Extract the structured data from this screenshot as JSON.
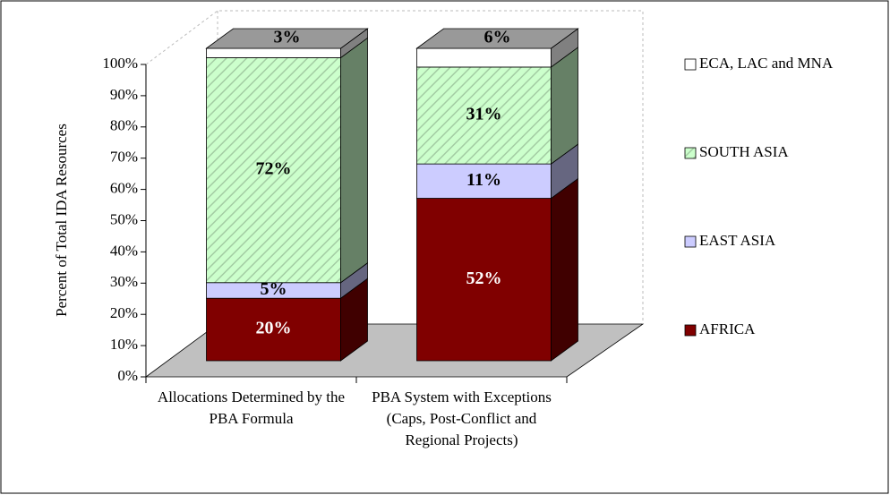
{
  "chart_data": {
    "type": "stacked_bar_3d",
    "y_label": "Percent of Total IDA Resources",
    "categories": [
      "Allocations Determined by the PBA Formula",
      "PBA System with Exceptions (Caps, Post-Conflict and Regional Projects)"
    ],
    "series": [
      {
        "name": "AFRICA",
        "color": "#800000",
        "values": [
          20,
          52
        ],
        "value_labels": [
          "20%",
          "52%"
        ]
      },
      {
        "name": "EAST ASIA",
        "color": "#ccccff",
        "values": [
          5,
          11
        ],
        "value_labels": [
          "5%",
          "11%"
        ]
      },
      {
        "name": "SOUTH ASIA",
        "color": "#ccffcc",
        "hatch": true,
        "values": [
          72,
          31
        ],
        "value_labels": [
          "72%",
          "31%"
        ]
      },
      {
        "name": "ECA, LAC and MNA",
        "color": "#ffffff",
        "values": [
          3,
          6
        ],
        "value_labels": [
          "3%",
          "6%"
        ]
      }
    ],
    "ylim": [
      0,
      100
    ],
    "yticks": [
      {
        "value": 0,
        "label": "0%"
      },
      {
        "value": 10,
        "label": "10%"
      },
      {
        "value": 20,
        "label": "20%"
      },
      {
        "value": 30,
        "label": "30%"
      },
      {
        "value": 40,
        "label": "40%"
      },
      {
        "value": 50,
        "label": "50%"
      },
      {
        "value": 60,
        "label": "60%"
      },
      {
        "value": 70,
        "label": "70%"
      },
      {
        "value": 80,
        "label": "80%"
      },
      {
        "value": 90,
        "label": "90%"
      },
      {
        "value": 100,
        "label": "100%"
      }
    ],
    "legend": "right"
  }
}
